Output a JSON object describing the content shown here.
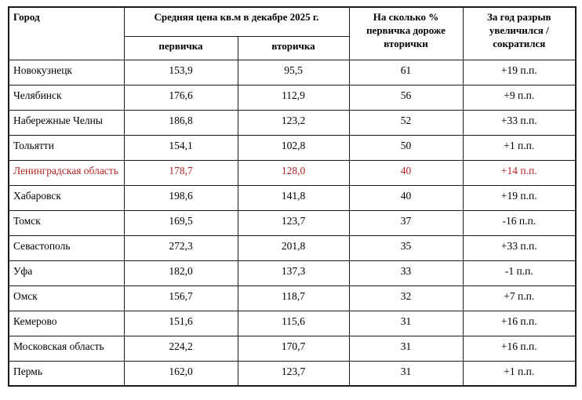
{
  "chart_data": {
    "type": "table",
    "header": {
      "city": "Город",
      "price_group": "Средняя цена кв.м в декабре 2025 г.",
      "primary": "первичка",
      "secondary": "вторичка",
      "pct_diff": "На сколько % первичка дороже вторички",
      "year_gap": "За год разрыв увеличился / сократился"
    },
    "rows": [
      {
        "city": "Новокузнецк",
        "primary": "153,9",
        "secondary": "95,5",
        "pct": "61",
        "gap": "+19 п.п.",
        "highlight": false
      },
      {
        "city": "Челябинск",
        "primary": "176,6",
        "secondary": "112,9",
        "pct": "56",
        "gap": "+9 п.п.",
        "highlight": false
      },
      {
        "city": "Набережные Челны",
        "primary": "186,8",
        "secondary": "123,2",
        "pct": "52",
        "gap": "+33 п.п.",
        "highlight": false
      },
      {
        "city": "Тольятти",
        "primary": "154,1",
        "secondary": "102,8",
        "pct": "50",
        "gap": "+1 п.п.",
        "highlight": false
      },
      {
        "city": "Ленинградская область",
        "primary": "178,7",
        "secondary": "128,0",
        "pct": "40",
        "gap": "+14 п.п.",
        "highlight": true
      },
      {
        "city": "Хабаровск",
        "primary": "198,6",
        "secondary": "141,8",
        "pct": "40",
        "gap": "+19 п.п.",
        "highlight": false
      },
      {
        "city": "Томск",
        "primary": "169,5",
        "secondary": "123,7",
        "pct": "37",
        "gap": "-16 п.п.",
        "highlight": false
      },
      {
        "city": "Севастополь",
        "primary": "272,3",
        "secondary": "201,8",
        "pct": "35",
        "gap": "+33 п.п.",
        "highlight": false
      },
      {
        "city": "Уфа",
        "primary": "182,0",
        "secondary": "137,3",
        "pct": "33",
        "gap": "-1 п.п.",
        "highlight": false
      },
      {
        "city": "Омск",
        "primary": "156,7",
        "secondary": "118,7",
        "pct": "32",
        "gap": "+7 п.п.",
        "highlight": false
      },
      {
        "city": "Кемерово",
        "primary": "151,6",
        "secondary": "115,6",
        "pct": "31",
        "gap": "+16 п.п.",
        "highlight": false
      },
      {
        "city": "Московская область",
        "primary": "224,2",
        "secondary": "170,7",
        "pct": "31",
        "gap": "+16 п.п.",
        "highlight": false
      },
      {
        "city": "Пермь",
        "primary": "162,0",
        "secondary": "123,7",
        "pct": "31",
        "gap": "+1 п.п.",
        "highlight": false
      }
    ],
    "colors": {
      "highlight_text": "#b22222",
      "border": "#1a1a1a",
      "text": "#000000",
      "background": "#ffffff"
    }
  }
}
